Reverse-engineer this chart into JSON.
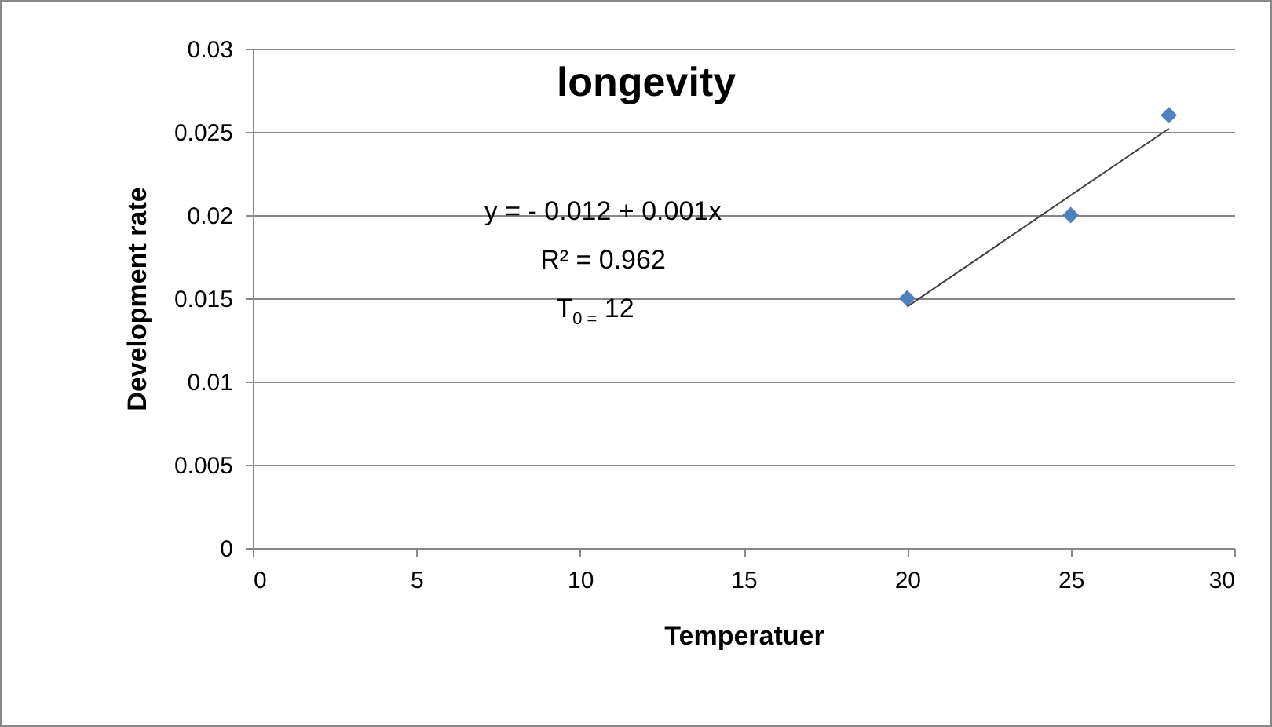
{
  "chart_data": {
    "type": "scatter",
    "title": "longevity",
    "xlabel": "Temperatuer",
    "ylabel": "Development rate",
    "xlim": [
      0,
      30
    ],
    "xticks": [
      0,
      5,
      10,
      15,
      20,
      25,
      30
    ],
    "ylim": [
      0,
      0.03
    ],
    "yticks": [
      0,
      0.005,
      0.01,
      0.015,
      0.02,
      0.025,
      0.03
    ],
    "grid": "y",
    "marker": "diamond",
    "series": [
      {
        "color": "#4f81bd",
        "x": [
          20,
          25,
          28
        ],
        "values": [
          0.015,
          0.02,
          0.026
        ]
      },
      {
        "type": "line",
        "marker": "none",
        "color": "#404040",
        "x": [
          20,
          28
        ],
        "values": [
          0.0145,
          0.0252
        ]
      }
    ],
    "annotations": [
      "y =  - 0.012 + 0.001x",
      "R² = 0.962",
      "T$_{0 =}$ 12"
    ]
  }
}
